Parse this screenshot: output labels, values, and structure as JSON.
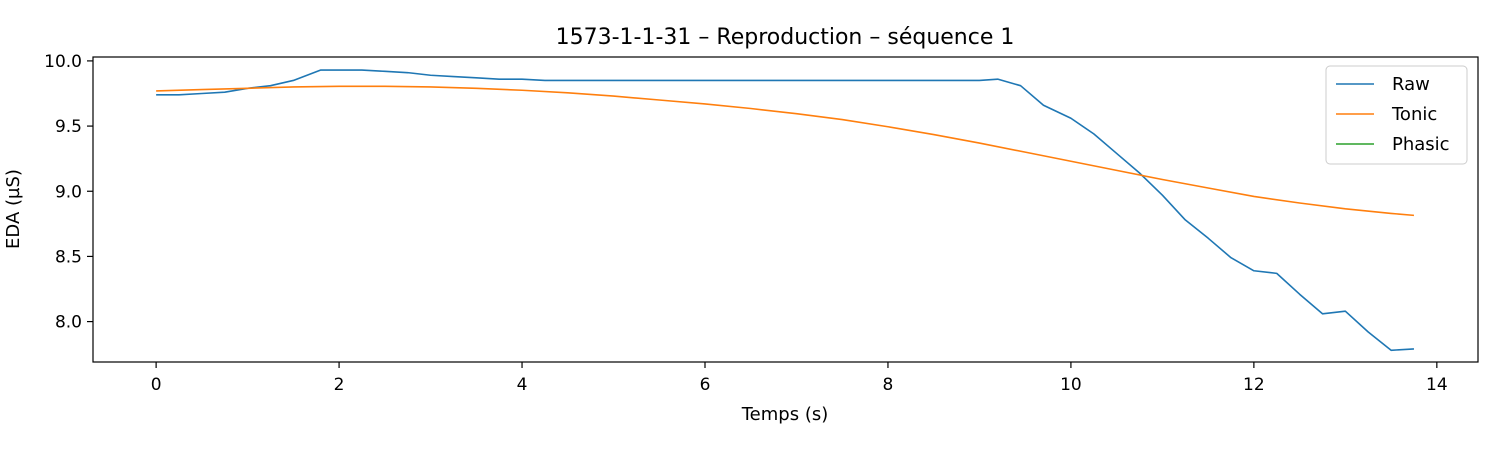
{
  "chart_data": {
    "type": "line",
    "title": "1573-1-1-31 – Reproduction – séquence 1",
    "xlabel": "Temps (s)",
    "ylabel": "EDA (µS)",
    "xlim": [
      -0.69,
      14.45
    ],
    "ylim": [
      7.69,
      10.03
    ],
    "xticks": [
      0,
      2,
      4,
      6,
      8,
      10,
      12,
      14
    ],
    "yticks": [
      8.0,
      8.5,
      9.0,
      9.5,
      10.0
    ],
    "xtick_labels": [
      "0",
      "2",
      "4",
      "6",
      "8",
      "10",
      "12",
      "14"
    ],
    "ytick_labels": [
      "8.0",
      "8.5",
      "9.0",
      "9.5",
      "10.0"
    ],
    "grid": false,
    "legend": {
      "position": "top-right",
      "entries": [
        "Raw",
        "Tonic",
        "Phasic"
      ]
    },
    "series": [
      {
        "name": "Raw",
        "color": "#1f77b4",
        "x": [
          0,
          0.25,
          0.5,
          0.75,
          1.0,
          1.25,
          1.5,
          1.8,
          2.0,
          2.25,
          2.5,
          2.75,
          3.0,
          3.25,
          3.5,
          3.75,
          4.0,
          4.25,
          4.5,
          4.75,
          5.0,
          5.5,
          6.0,
          6.5,
          7.0,
          7.5,
          8.0,
          8.5,
          9.0,
          9.2,
          9.45,
          9.7,
          10.0,
          10.25,
          10.5,
          10.75,
          11.0,
          11.25,
          11.5,
          11.75,
          12.0,
          12.25,
          12.5,
          12.75,
          13.0,
          13.25,
          13.5,
          13.75
        ],
        "y": [
          9.74,
          9.74,
          9.75,
          9.76,
          9.79,
          9.81,
          9.85,
          9.93,
          9.93,
          9.93,
          9.92,
          9.91,
          9.89,
          9.88,
          9.87,
          9.86,
          9.86,
          9.85,
          9.85,
          9.85,
          9.85,
          9.85,
          9.85,
          9.85,
          9.85,
          9.85,
          9.85,
          9.85,
          9.85,
          9.86,
          9.81,
          9.66,
          9.56,
          9.44,
          9.29,
          9.14,
          8.97,
          8.78,
          8.64,
          8.49,
          8.39,
          8.37,
          8.21,
          8.06,
          8.08,
          7.92,
          7.78,
          7.79
        ]
      },
      {
        "name": "Tonic",
        "color": "#ff7f0e",
        "x": [
          0,
          0.5,
          1.0,
          1.5,
          2.0,
          2.5,
          3.0,
          3.5,
          4.0,
          4.5,
          5.0,
          5.5,
          6.0,
          6.5,
          7.0,
          7.5,
          8.0,
          8.5,
          9.0,
          9.5,
          10.0,
          10.5,
          11.0,
          11.5,
          12.0,
          12.5,
          13.0,
          13.5,
          13.75
        ],
        "y": [
          9.77,
          9.78,
          9.79,
          9.8,
          9.805,
          9.805,
          9.8,
          9.79,
          9.775,
          9.755,
          9.73,
          9.7,
          9.67,
          9.635,
          9.595,
          9.55,
          9.495,
          9.435,
          9.37,
          9.3,
          9.23,
          9.16,
          9.09,
          9.025,
          8.96,
          8.91,
          8.865,
          8.83,
          8.815
        ]
      },
      {
        "name": "Phasic",
        "color": "#2ca02c",
        "x": [],
        "y": []
      }
    ]
  }
}
